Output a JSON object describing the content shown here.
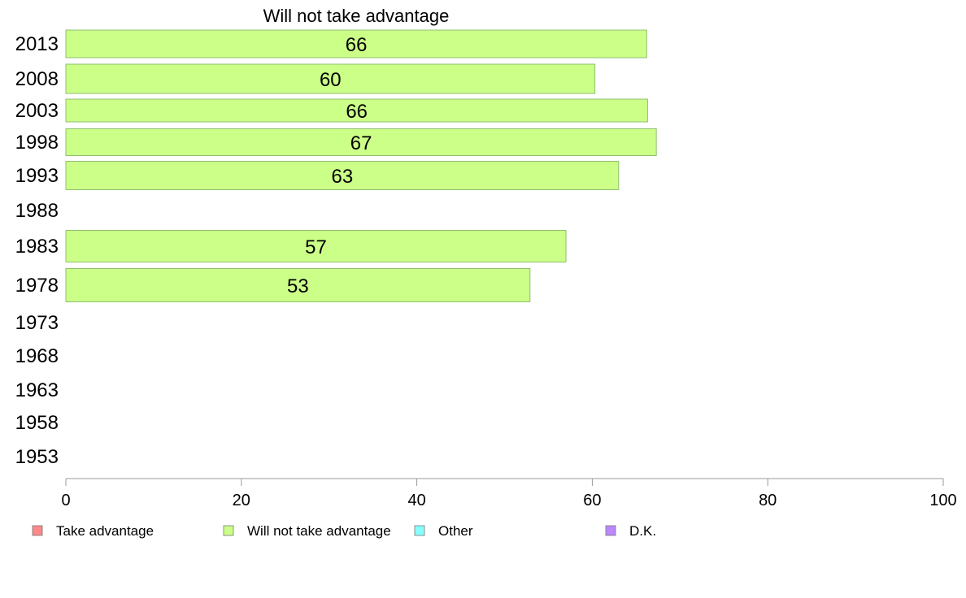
{
  "chart_data": {
    "type": "bar",
    "orientation": "horizontal",
    "title": "Will not take advantage",
    "categories": [
      "2013",
      "2008",
      "2003",
      "1998",
      "1993",
      "1988",
      "1983",
      "1978",
      "1973",
      "1968",
      "1963",
      "1958",
      "1953"
    ],
    "series": [
      {
        "name": "Will not take advantage",
        "color": "#ccff88",
        "values": [
          66.2,
          60.3,
          66.3,
          67.3,
          63.0,
          null,
          57.0,
          52.9,
          null,
          null,
          null,
          null,
          null
        ],
        "labels": [
          "66",
          "60",
          "66",
          "67",
          "63",
          "",
          "57",
          "53",
          "",
          "",
          "",
          "",
          ""
        ]
      }
    ],
    "xlim": [
      0,
      100
    ],
    "xticks": [
      0,
      20,
      40,
      60,
      80,
      100
    ],
    "grid": false,
    "legend": {
      "placement": "bottom",
      "items": [
        {
          "label": "Take advantage",
          "color": "#ff8888"
        },
        {
          "label": "Will not take advantage",
          "color": "#ccff88"
        },
        {
          "label": "Other",
          "color": "#88ffff"
        },
        {
          "label": "D.K.",
          "color": "#bb88ff"
        }
      ]
    }
  }
}
